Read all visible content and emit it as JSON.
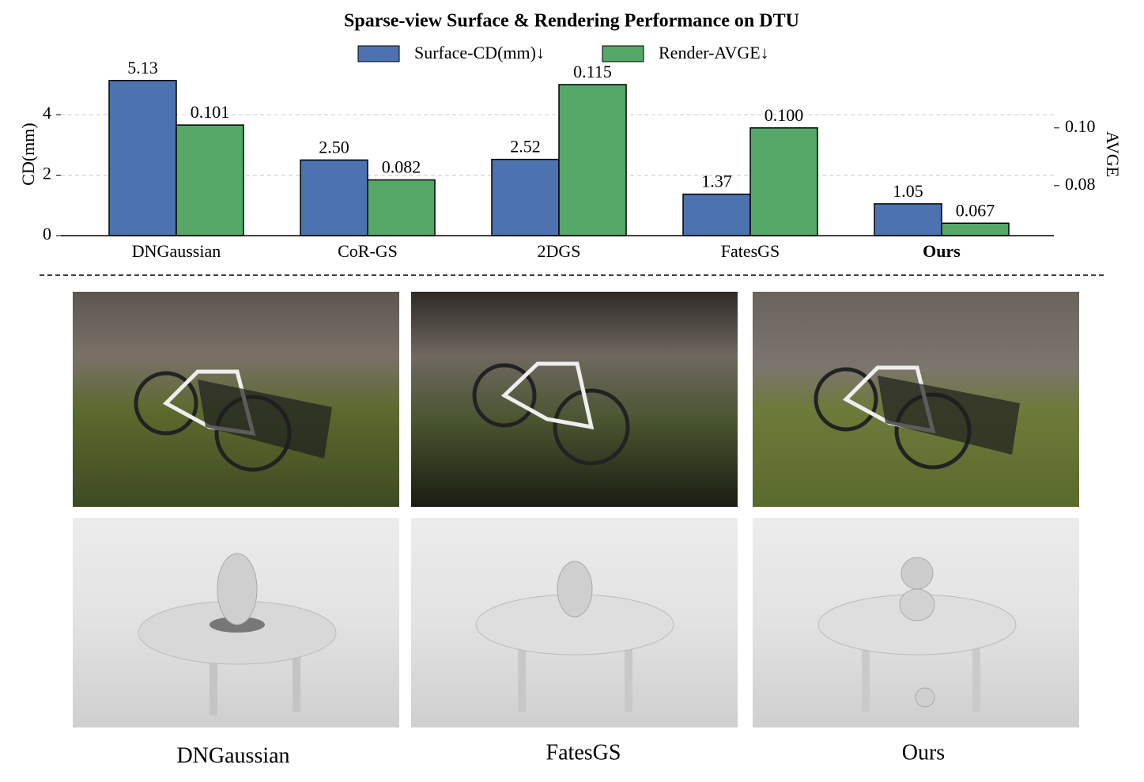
{
  "chart_data": {
    "type": "bar",
    "title": "Sparse-view Surface & Rendering Performance on DTU",
    "categories": [
      "DNGaussian",
      "CoR-GS",
      "2DGS",
      "FatesGS",
      "Ours"
    ],
    "series": [
      {
        "name": "Surface-CD(mm)↓",
        "color": "#4c72b0",
        "values": [
          5.13,
          2.5,
          2.52,
          1.37,
          1.05
        ],
        "value_labels": [
          "5.13",
          "2.50",
          "2.52",
          "1.37",
          "1.05"
        ]
      },
      {
        "name": "Render-AVGE↓",
        "color": "#55a868",
        "axis": "y2",
        "values": [
          0.101,
          0.082,
          0.115,
          0.1,
          0.067
        ],
        "value_labels": [
          "0.101",
          "0.082",
          "0.115",
          "0.100",
          "0.067"
        ]
      }
    ],
    "ylabel": "CD(mm)",
    "y2label": "AVGE",
    "ylim": [
      0,
      5.49
    ],
    "yticks": [
      0,
      2,
      4
    ],
    "y2lim": [
      0.0627,
      0.1202
    ],
    "y2ticks": [
      0.08,
      {
        "value": 0.1,
        "label": "0.10"
      }
    ],
    "grid": true,
    "legend": "top"
  },
  "captions": [
    "DNGaussian",
    "FatesGS",
    "Ours"
  ]
}
